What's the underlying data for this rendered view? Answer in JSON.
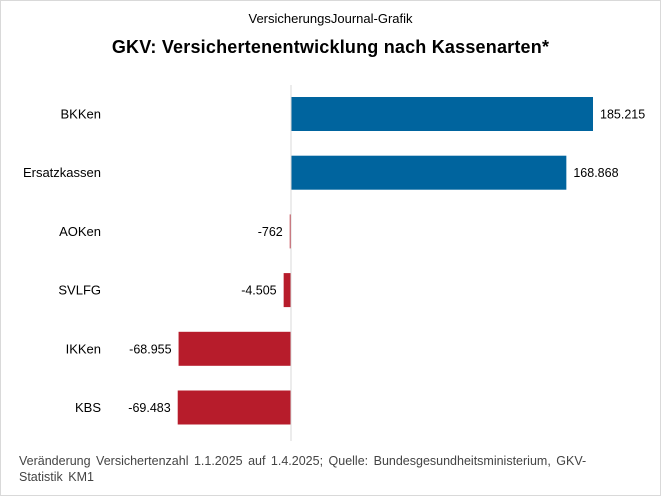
{
  "header": {
    "supertitle": "VersicherungsJournal-Grafik",
    "title": "GKV: Versichertenentwicklung  nach Kassenarten*"
  },
  "footnote": "Veränderung Versichertenzahl 1.1.2025 auf 1.4.2025; Quelle: Bundesgesundheitsministerium, GKV-Statistik KM1",
  "colors": {
    "positive": "#00649E",
    "negative": "#B71C2B"
  },
  "chart_data": {
    "type": "bar",
    "orientation": "horizontal",
    "categories": [
      "BKKen",
      "Ersatzkassen",
      "AOKen",
      "SVLFG",
      "IKKen",
      "KBS"
    ],
    "values": [
      185215,
      168868,
      -762,
      -4505,
      -68955,
      -69483
    ],
    "value_labels": [
      "185.215",
      "168.868",
      "-762",
      "-4.505",
      "-68.955",
      "-69.483"
    ],
    "xlim": [
      -80000,
      190000
    ],
    "grid": false,
    "legend": "none"
  }
}
